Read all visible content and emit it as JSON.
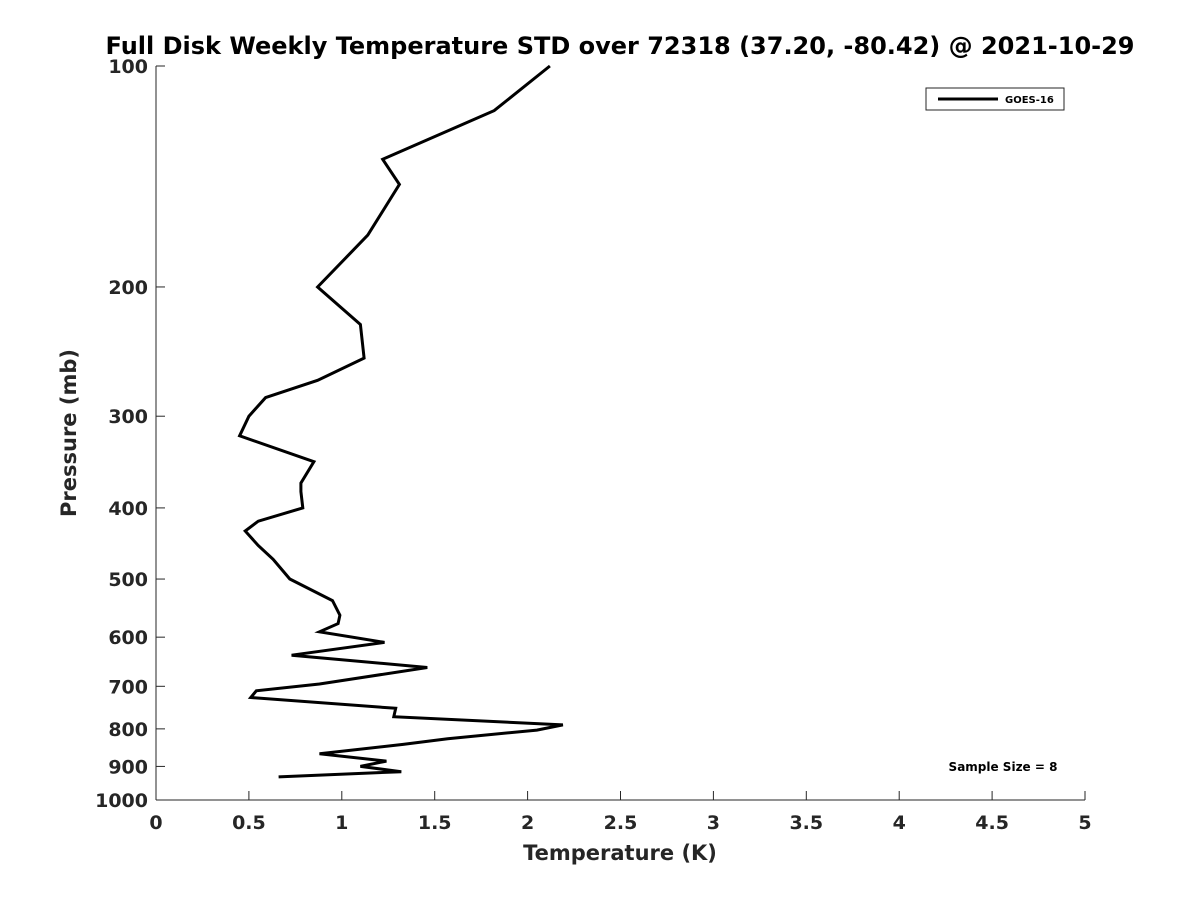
{
  "chart_data": {
    "type": "line",
    "title": "Full Disk Weekly Temperature STD over 72318 (37.20, -80.42) @ 2021-10-29",
    "xlabel": "Temperature (K)",
    "ylabel": "Pressure (mb)",
    "xlim": [
      0,
      5
    ],
    "ylim": [
      1000,
      100
    ],
    "y_scale": "log",
    "y_reversed": true,
    "x_ticks": [
      "0",
      "0.5",
      "1",
      "1.5",
      "2",
      "2.5",
      "3",
      "3.5",
      "4",
      "4.5",
      "5"
    ],
    "y_ticks": [
      "100",
      "200",
      "300",
      "400",
      "500",
      "600",
      "700",
      "800",
      "900",
      "1000"
    ],
    "grid": false,
    "legend_position": "top-right",
    "series": [
      {
        "name": "GOES-16",
        "color": "#000000",
        "x": [
          2.12,
          1.82,
          1.22,
          1.31,
          1.14,
          0.87,
          1.1,
          1.12,
          0.87,
          0.59,
          0.5,
          0.45,
          0.85,
          0.78,
          0.78,
          0.79,
          0.55,
          0.48,
          0.55,
          0.63,
          0.72,
          0.95,
          0.99,
          0.98,
          0.88,
          1.23,
          0.73,
          1.46,
          0.88,
          0.54,
          0.51,
          1.29,
          1.28,
          2.19,
          2.05,
          1.57,
          1.33,
          0.88,
          1.24,
          1.1,
          1.32,
          0.66
        ],
        "y": [
          100,
          115,
          134,
          145,
          170,
          200,
          225,
          250,
          268,
          283,
          300,
          319,
          346,
          370,
          380,
          400,
          417,
          430,
          450,
          470,
          500,
          535,
          560,
          575,
          590,
          610,
          635,
          660,
          695,
          710,
          725,
          750,
          770,
          790,
          803,
          825,
          840,
          865,
          885,
          900,
          915,
          930
        ]
      }
    ],
    "annotations": [
      "Sample Size = 8"
    ]
  }
}
